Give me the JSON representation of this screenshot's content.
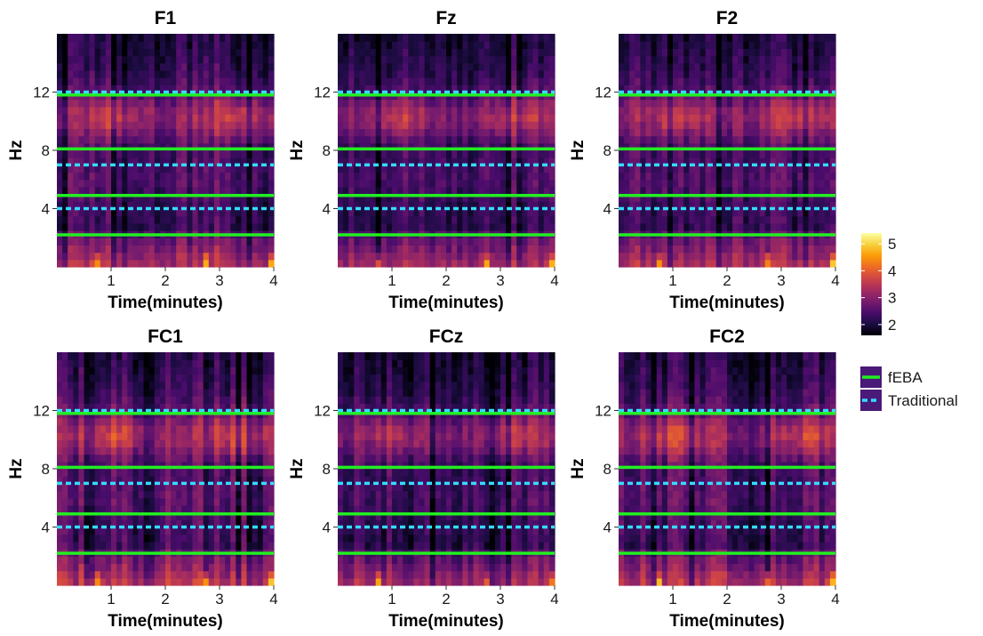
{
  "chart_data": {
    "type": "heatmap",
    "layout": "2x3 grid of spectrogram panels",
    "x_range": [
      0,
      4
    ],
    "y_range": [
      0,
      16
    ],
    "xlabel": "Time(minutes)",
    "ylabel": "Hz",
    "x_ticks": [
      1,
      2,
      3,
      4
    ],
    "y_ticks": [
      4,
      8,
      12
    ],
    "colorbar": {
      "min": 1.6,
      "max": 5.4,
      "ticks": [
        2,
        3,
        4,
        5
      ]
    },
    "legend": [
      {
        "label": "fEBA",
        "style": "solid",
        "color": "#22ee22"
      },
      {
        "label": "Traditional",
        "style": "dashed",
        "color": "#33ddff"
      }
    ],
    "band_boundaries": {
      "fEBA": [
        2.2,
        4.9,
        8.1,
        11.8
      ],
      "Traditional": [
        4,
        7,
        12
      ]
    },
    "panels": [
      {
        "title": "F1",
        "intensity": 1.0
      },
      {
        "title": "Fz",
        "intensity": 0.96
      },
      {
        "title": "F2",
        "intensity": 0.98
      },
      {
        "title": "FC1",
        "intensity": 1.02
      },
      {
        "title": "FCz",
        "intensity": 0.95
      },
      {
        "title": "FC2",
        "intensity": 0.99
      }
    ],
    "time_bins": 40,
    "freq_bins": 32,
    "palette": [
      "#000004",
      "#1b0c41",
      "#4a0c6b",
      "#781c6d",
      "#a52c60",
      "#cf4446",
      "#ed6925",
      "#fb9b06",
      "#f7d13d",
      "#fcffa4"
    ]
  }
}
